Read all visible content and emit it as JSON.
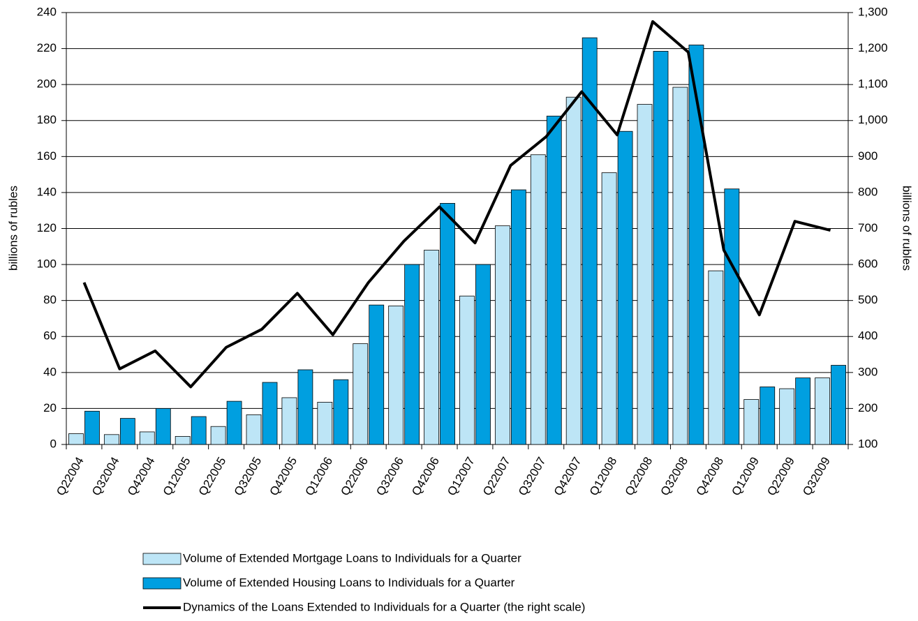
{
  "chart_data": {
    "type": "bar",
    "categories": [
      "Q22004",
      "Q32004",
      "Q42004",
      "Q12005",
      "Q22005",
      "Q32005",
      "Q42005",
      "Q12006",
      "Q22006",
      "Q32006",
      "Q42006",
      "Q12007",
      "Q22007",
      "Q32007",
      "Q42007",
      "Q12008",
      "Q22008",
      "Q32008",
      "Q42008",
      "Q12009",
      "Q22009",
      "Q32009"
    ],
    "series": [
      {
        "name": "Volume of Extended Mortgage Loans to Individuals  for a Quarter",
        "color": "#bde5f6",
        "type": "bar",
        "values": [
          6,
          5.5,
          7,
          4.5,
          10,
          16.5,
          26,
          23.5,
          56,
          77,
          108,
          82.5,
          121.5,
          161,
          193,
          151,
          189,
          198.5,
          96.5,
          25,
          31,
          37
        ]
      },
      {
        "name": "Volume of Extended Housing Loans to Individuals for a Quarter",
        "color": "#009fe0",
        "type": "bar",
        "values": [
          18.5,
          14.5,
          20,
          15.5,
          24,
          34.5,
          41.5,
          36,
          77.5,
          100,
          134,
          100,
          141.5,
          182.5,
          226,
          174,
          218.5,
          222,
          142,
          32,
          37,
          44
        ]
      },
      {
        "name": "Dynamics of the Loans Extended to Individuals for a Quarter (the right scale)",
        "color": "#000000",
        "type": "line",
        "axis": "y2",
        "values": [
          550,
          310,
          360,
          260,
          370,
          420,
          520,
          405,
          550,
          665,
          760,
          660,
          875,
          955,
          1080,
          960,
          1275,
          1190,
          640,
          460,
          720,
          695
        ]
      }
    ],
    "y_label": "billions of rubles",
    "y2_label": "billions of rubles",
    "ylim": [
      0,
      240
    ],
    "yticks": [
      0,
      20,
      40,
      60,
      80,
      100,
      120,
      140,
      160,
      180,
      200,
      220,
      240
    ],
    "y2lim": [
      100,
      1300
    ],
    "y2ticks": [
      100,
      200,
      300,
      400,
      500,
      600,
      700,
      800,
      900,
      {
        "value": 1000,
        "label": "1,000"
      },
      {
        "value": 1100,
        "label": "1,100"
      },
      {
        "value": 1200,
        "label": "1,200"
      },
      {
        "value": 1300,
        "label": "1,300"
      }
    ],
    "grid": true
  }
}
